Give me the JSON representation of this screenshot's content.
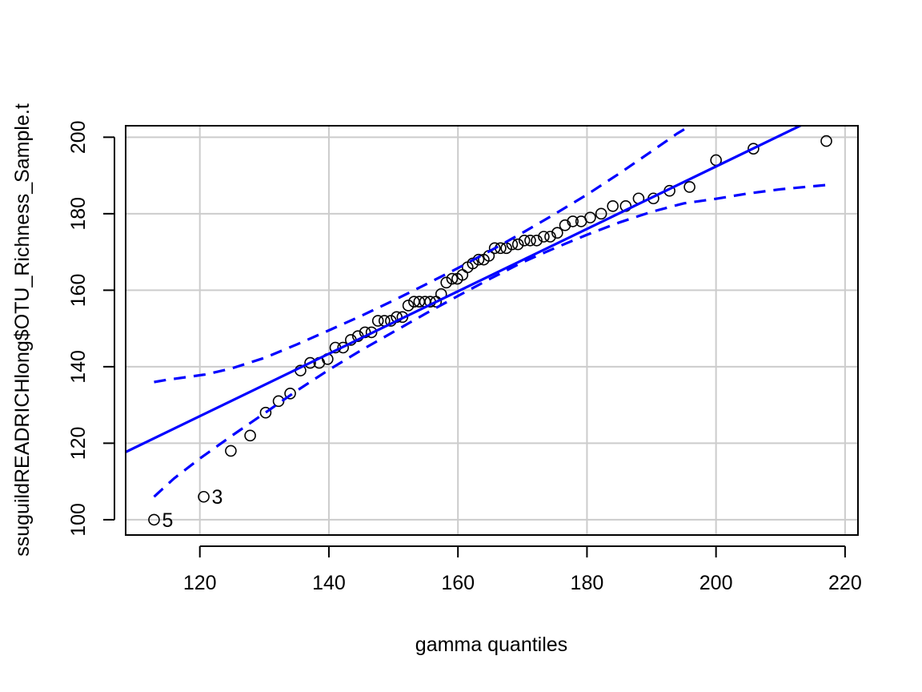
{
  "chart_data": {
    "type": "scatter",
    "title": "",
    "xlabel": "gamma quantiles",
    "ylabel": "ssuguildREADRICHlong$OTU_Richness_Sample.t",
    "xlim": [
      108.5,
      222
    ],
    "ylim": [
      96,
      203
    ],
    "x_ticks": [
      120,
      140,
      160,
      180,
      200,
      220
    ],
    "y_ticks": [
      100,
      120,
      140,
      160,
      180,
      200
    ],
    "x_tick_labels": [
      "120",
      "140",
      "160",
      "180",
      "200",
      "220"
    ],
    "y_tick_labels": [
      "100",
      "120",
      "140",
      "160",
      "180",
      "200"
    ],
    "grid": true,
    "series": [
      {
        "kind": "points",
        "color": "#000000",
        "points": [
          [
            112.9,
            100
          ],
          [
            120.6,
            106
          ],
          [
            124.8,
            118
          ],
          [
            127.8,
            122
          ],
          [
            130.2,
            128
          ],
          [
            132.2,
            131
          ],
          [
            134.0,
            133
          ],
          [
            135.6,
            139
          ],
          [
            137.1,
            141
          ],
          [
            138.5,
            141
          ],
          [
            139.8,
            142
          ],
          [
            141.0,
            145
          ],
          [
            142.2,
            145
          ],
          [
            143.4,
            147
          ],
          [
            144.5,
            148
          ],
          [
            145.6,
            149
          ],
          [
            146.6,
            149
          ],
          [
            147.6,
            152
          ],
          [
            148.6,
            152
          ],
          [
            149.6,
            152
          ],
          [
            150.5,
            153
          ],
          [
            151.4,
            153
          ],
          [
            152.3,
            156
          ],
          [
            153.2,
            157
          ],
          [
            154.0,
            157
          ],
          [
            154.9,
            157
          ],
          [
            155.7,
            157
          ],
          [
            156.6,
            157
          ],
          [
            157.4,
            159
          ],
          [
            158.2,
            162
          ],
          [
            159.1,
            163
          ],
          [
            159.9,
            163
          ],
          [
            160.7,
            164
          ],
          [
            161.5,
            166
          ],
          [
            162.3,
            167
          ],
          [
            163.2,
            168
          ],
          [
            164.0,
            168
          ],
          [
            164.8,
            169
          ],
          [
            165.7,
            171
          ],
          [
            166.6,
            171
          ],
          [
            167.5,
            171
          ],
          [
            168.4,
            172
          ],
          [
            169.3,
            172
          ],
          [
            170.3,
            173
          ],
          [
            171.2,
            173
          ],
          [
            172.2,
            173
          ],
          [
            173.3,
            174
          ],
          [
            174.3,
            174
          ],
          [
            175.4,
            175
          ],
          [
            176.6,
            177
          ],
          [
            177.8,
            178
          ],
          [
            179.1,
            178
          ],
          [
            180.5,
            179
          ],
          [
            182.2,
            180
          ],
          [
            184.0,
            182
          ],
          [
            186.0,
            182
          ],
          [
            188.0,
            184
          ],
          [
            190.3,
            184
          ],
          [
            192.8,
            186
          ],
          [
            195.9,
            187
          ],
          [
            200.0,
            194
          ],
          [
            205.8,
            197
          ],
          [
            217.1,
            199
          ]
        ]
      },
      {
        "kind": "line",
        "name": "",
        "color": "#0000FF",
        "style": "solid",
        "points": [
          [
            108.5,
            117.7
          ],
          [
            222,
            210.3
          ]
        ]
      },
      {
        "kind": "line",
        "name": "",
        "color": "#0000FF",
        "style": "dashed",
        "points": [
          [
            112.9,
            136
          ],
          [
            115,
            136.6
          ],
          [
            118,
            137.3
          ],
          [
            121,
            138
          ],
          [
            125,
            139.6
          ],
          [
            130,
            142.3
          ],
          [
            135,
            145.8
          ],
          [
            140,
            149.5
          ],
          [
            145,
            153.3
          ],
          [
            150,
            157.3
          ],
          [
            155,
            161.5
          ],
          [
            160,
            165.8
          ],
          [
            165,
            170.3
          ],
          [
            170,
            175
          ],
          [
            175,
            179.9
          ],
          [
            180,
            185
          ],
          [
            185,
            190.5
          ],
          [
            190,
            196.3
          ],
          [
            194,
            201
          ],
          [
            197,
            204
          ]
        ]
      },
      {
        "kind": "line",
        "name": "",
        "color": "#0000FF",
        "style": "dashed",
        "points": [
          [
            112.9,
            106
          ],
          [
            116,
            110.8
          ],
          [
            120,
            116
          ],
          [
            125,
            122
          ],
          [
            130,
            127.8
          ],
          [
            135,
            133.7
          ],
          [
            140,
            139.2
          ],
          [
            145,
            144.3
          ],
          [
            150,
            149.1
          ],
          [
            155,
            153.9
          ],
          [
            160,
            158.5
          ],
          [
            165,
            163
          ],
          [
            170,
            167.3
          ],
          [
            175,
            171
          ],
          [
            180,
            174.5
          ],
          [
            185,
            177.7
          ],
          [
            190,
            180.5
          ],
          [
            195,
            182.7
          ],
          [
            200,
            183.9
          ],
          [
            205,
            185.3
          ],
          [
            210,
            186.4
          ],
          [
            217.1,
            187.5
          ]
        ]
      }
    ],
    "annotations": [
      {
        "text": "5",
        "x": 112.9,
        "y": 100
      },
      {
        "text": "3",
        "x": 120.6,
        "y": 106
      }
    ]
  }
}
